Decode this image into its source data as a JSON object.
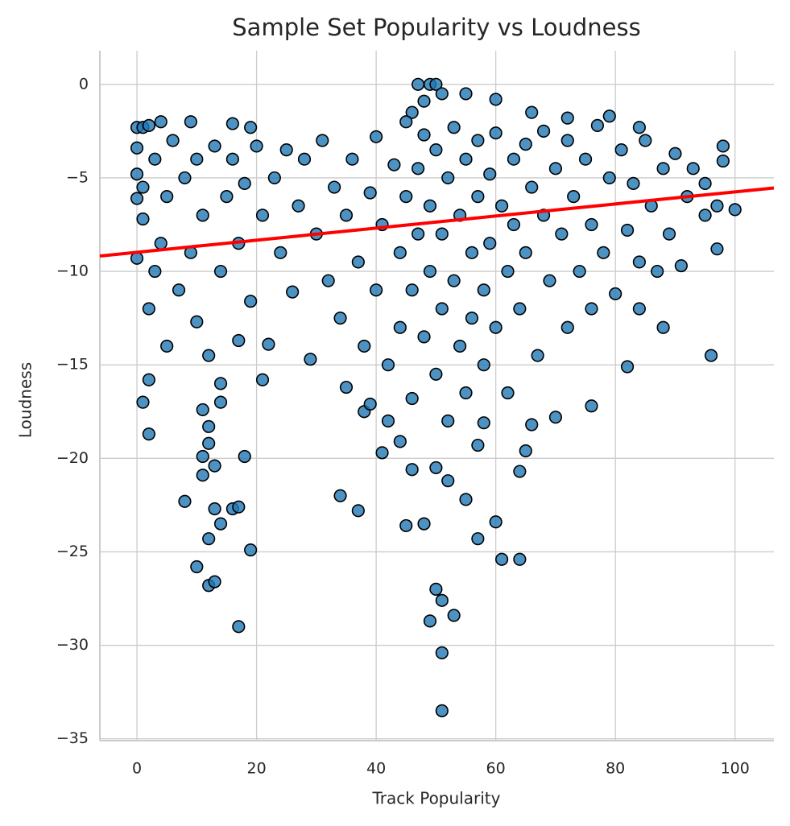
{
  "chart_data": {
    "type": "scatter",
    "title": "Sample Set Popularity vs Loudness",
    "x_label": "Track Popularity",
    "y_label": "Loudness",
    "color": "#1f77b4",
    "edge_color": "#000000",
    "grid": true,
    "xlim": [
      -6.2,
      106.5
    ],
    "ylim": [
      -35.1,
      1.8
    ],
    "xticks": [
      0,
      20,
      40,
      60,
      80,
      100
    ],
    "yticks": [
      {
        "value": -35,
        "label": "−35"
      },
      {
        "value": -30,
        "label": "−30"
      },
      {
        "value": -25,
        "label": "−25"
      },
      {
        "value": -20,
        "label": "−20"
      },
      {
        "value": -15,
        "label": "−15"
      },
      {
        "value": -10,
        "label": "−10"
      },
      {
        "value": -5,
        "label": "−5"
      },
      0
    ],
    "x": [
      47,
      49,
      50,
      51,
      55,
      48,
      46,
      60,
      66,
      9,
      16,
      0,
      1,
      2,
      4,
      19,
      79,
      72,
      84,
      98,
      98,
      100,
      97,
      97,
      96,
      88,
      84,
      82,
      76,
      70,
      64,
      61,
      60,
      57,
      51,
      51,
      53,
      49,
      50,
      51,
      17,
      19,
      12,
      13,
      10,
      12,
      14,
      13,
      16,
      17,
      8,
      11,
      11,
      13,
      12,
      12,
      11,
      14,
      14,
      2,
      1,
      2,
      21,
      18,
      34,
      37,
      41,
      45,
      48,
      52,
      50,
      55,
      57,
      65,
      64,
      66,
      35,
      38,
      39,
      42,
      44,
      46,
      58,
      0,
      0,
      0,
      0,
      1,
      1,
      2,
      3,
      3,
      4,
      5,
      5,
      6,
      7,
      8,
      9,
      10,
      10,
      11,
      12,
      13,
      14,
      15,
      16,
      17,
      17,
      18,
      19,
      20,
      21,
      22,
      23,
      24,
      25,
      26,
      27,
      28,
      29,
      30,
      31,
      32,
      33,
      34,
      35,
      36,
      37,
      38,
      39,
      40,
      40,
      41,
      42,
      43,
      44,
      44,
      45,
      45,
      46,
      46,
      47,
      47,
      48,
      48,
      49,
      49,
      50,
      50,
      51,
      51,
      52,
      52,
      53,
      53,
      54,
      54,
      55,
      55,
      56,
      56,
      57,
      57,
      58,
      58,
      59,
      59,
      60,
      60,
      61,
      62,
      62,
      63,
      63,
      64,
      65,
      65,
      66,
      67,
      68,
      68,
      69,
      70,
      71,
      72,
      72,
      73,
      74,
      75,
      76,
      76,
      77,
      78,
      79,
      80,
      81,
      82,
      83,
      84,
      85,
      86,
      87,
      88,
      89,
      90,
      91,
      92,
      93,
      95,
      95
    ],
    "values": [
      0,
      0,
      0,
      -0.5,
      -0.5,
      -0.9,
      -1.5,
      -0.8,
      -1.5,
      -2,
      -2.1,
      -2.3,
      -2.3,
      -2.2,
      -2,
      -2.3,
      -1.7,
      -1.8,
      -2.3,
      -3.3,
      -4.1,
      -6.7,
      -6.5,
      -8.8,
      -14.5,
      -13,
      -12,
      -15.1,
      -17.2,
      -17.8,
      -25.4,
      -25.4,
      -23.4,
      -24.3,
      -33.5,
      -30.4,
      -28.4,
      -28.7,
      -27,
      -27.6,
      -29,
      -24.9,
      -26.8,
      -26.6,
      -25.8,
      -24.3,
      -23.5,
      -22.7,
      -22.7,
      -22.6,
      -22.3,
      -19.9,
      -20.9,
      -20.4,
      -19.2,
      -18.3,
      -17.4,
      -17,
      -16,
      -18.7,
      -17,
      -15.8,
      -15.8,
      -19.9,
      -22,
      -22.8,
      -19.7,
      -23.6,
      -23.5,
      -21.2,
      -20.5,
      -22.2,
      -19.3,
      -19.6,
      -20.7,
      -18.2,
      -16.2,
      -17.5,
      -17.1,
      -18,
      -19.1,
      -20.6,
      -18.1,
      -3.4,
      -4.8,
      -6.1,
      -9.3,
      -5.5,
      -7.2,
      -12,
      -10,
      -4,
      -8.5,
      -14,
      -6,
      -3,
      -11,
      -5,
      -9,
      -4,
      -12.7,
      -7,
      -14.5,
      -3.3,
      -10,
      -6,
      -4,
      -8.5,
      -13.7,
      -5.3,
      -11.6,
      -3.3,
      -7,
      -13.9,
      -5,
      -9,
      -3.5,
      -11.1,
      -6.5,
      -4,
      -14.7,
      -8,
      -3,
      -10.5,
      -5.5,
      -12.5,
      -7,
      -4,
      -9.5,
      -14,
      -5.8,
      -2.8,
      -11,
      -7.5,
      -15,
      -4.3,
      -9,
      -13,
      -2,
      -6,
      -11,
      -16.8,
      -4.5,
      -8,
      -13.5,
      -2.7,
      -6.5,
      -10,
      -15.5,
      -3.5,
      -8,
      -12,
      -5,
      -18,
      -2.3,
      -10.5,
      -7,
      -14,
      -4,
      -16.5,
      -9,
      -12.5,
      -3,
      -6,
      -11,
      -15,
      -4.8,
      -8.5,
      -13,
      -2.6,
      -6.5,
      -10,
      -16.5,
      -4,
      -7.5,
      -12,
      -3.2,
      -9,
      -5.5,
      -14.5,
      -7,
      -2.5,
      -10.5,
      -4.5,
      -8,
      -13,
      -3,
      -6,
      -10,
      -4,
      -7.5,
      -12,
      -2.2,
      -9,
      -5,
      -11.2,
      -3.5,
      -7.8,
      -5.3,
      -9.5,
      -3,
      -6.5,
      -10,
      -4.5,
      -8,
      -3.7,
      -9.7,
      -6,
      -4.5,
      -7,
      -5.3
    ],
    "fit": {
      "color": "#ff0000",
      "x": [
        -6.2,
        106.5
      ],
      "y": [
        -9.18,
        -5.54
      ]
    }
  }
}
